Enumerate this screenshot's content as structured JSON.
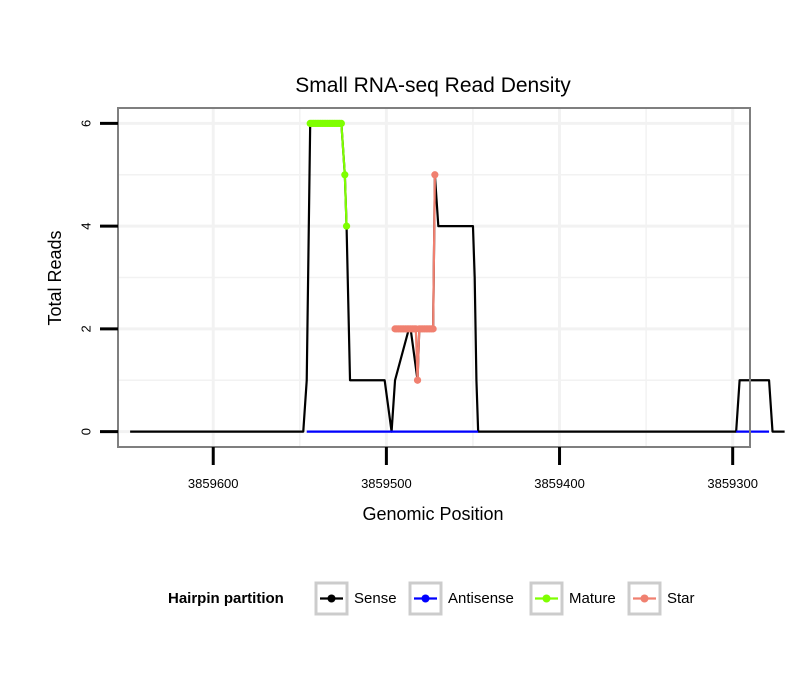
{
  "chart_data": {
    "type": "line",
    "title": "Small RNA-seq Read Density",
    "xlabel": "Genomic Position",
    "ylabel": "Total Reads",
    "x_reversed": true,
    "xlim": [
      3859655,
      3859290
    ],
    "ylim": [
      -0.3,
      6.3
    ],
    "x_ticks": [
      3859600,
      3859500,
      3859400,
      3859300
    ],
    "x_tick_labels": [
      "3859600",
      "3859500",
      "3859400",
      "3859300"
    ],
    "y_ticks": [
      0,
      2,
      4,
      6
    ],
    "y_tick_labels": [
      "0",
      "2",
      "4",
      "6"
    ],
    "grid": true,
    "legend": {
      "title": "Hairpin partition",
      "position": "bottom",
      "entries": [
        "Sense",
        "Antisense",
        "Mature",
        "Star"
      ]
    },
    "colors": {
      "Sense": "#000000",
      "Antisense": "#0000ff",
      "Mature": "#7fff00",
      "Star": "#f08070",
      "panel_border": "#7f7f7f",
      "grid": "#f2f2f2"
    },
    "series": [
      {
        "name": "Sense",
        "x": [
          3859648,
          3859548,
          3859546,
          3859544,
          3859526,
          3859524,
          3859523,
          3859521,
          3859501,
          3859497,
          3859495,
          3859487,
          3859486,
          3859482,
          3859481,
          3859475,
          3859474,
          3859473,
          3859472,
          3859470,
          3859468,
          3859466,
          3859465,
          3859450,
          3859449,
          3859448,
          3859447,
          3859298,
          3859296,
          3859279,
          3859277,
          3859270
        ],
        "y": [
          0,
          0,
          1,
          6,
          6,
          5,
          4,
          1,
          1,
          0,
          1,
          2,
          2,
          1,
          2,
          2,
          2,
          2,
          5,
          4,
          4,
          4,
          4,
          4,
          3,
          1,
          0,
          0,
          1,
          1,
          0,
          0
        ]
      },
      {
        "name": "Antisense",
        "x": [
          3859546,
          3859447,
          3859298,
          3859279
        ],
        "y": [
          0,
          0,
          0,
          0
        ],
        "segments": [
          [
            0,
            1
          ],
          [
            2,
            3
          ]
        ]
      },
      {
        "name": "Mature",
        "x": [
          3859544,
          3859543,
          3859542,
          3859541,
          3859540,
          3859539,
          3859538,
          3859537,
          3859536,
          3859535,
          3859534,
          3859533,
          3859532,
          3859531,
          3859530,
          3859529,
          3859528,
          3859527,
          3859526,
          3859524,
          3859523
        ],
        "y": [
          6,
          6,
          6,
          6,
          6,
          6,
          6,
          6,
          6,
          6,
          6,
          6,
          6,
          6,
          6,
          6,
          6,
          6,
          6,
          5,
          4
        ]
      },
      {
        "name": "Star",
        "x": [
          3859495,
          3859494,
          3859493,
          3859492,
          3859491,
          3859490,
          3859489,
          3859488,
          3859487,
          3859486,
          3859485,
          3859484,
          3859483,
          3859482,
          3859481,
          3859480,
          3859479,
          3859478,
          3859477,
          3859476,
          3859475,
          3859474,
          3859473,
          3859472
        ],
        "y": [
          2,
          2,
          2,
          2,
          2,
          2,
          2,
          2,
          2,
          2,
          2,
          2,
          2,
          1,
          2,
          2,
          2,
          2,
          2,
          2,
          2,
          2,
          2,
          5
        ]
      }
    ]
  }
}
